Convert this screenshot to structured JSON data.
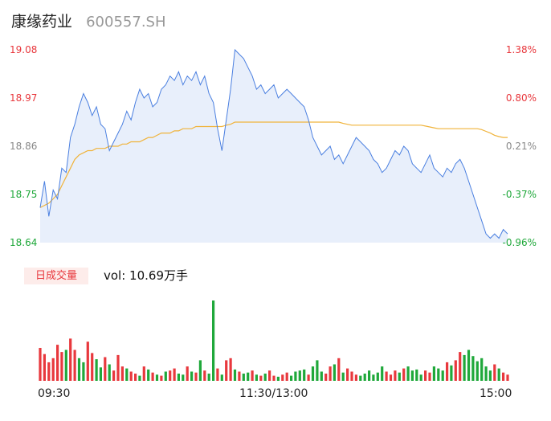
{
  "header": {
    "name": "康缘药业",
    "code": "600557.SH"
  },
  "volume": {
    "tab_label": "日成交量",
    "prefix": "vol: ",
    "value": "10.69万手"
  },
  "colors": {
    "price_line": "#4a7fe0",
    "price_fill": "#e8effb",
    "avg_line": "#f0b33a",
    "up": "#e8383d",
    "down": "#1fa83a",
    "flat": "#888888"
  },
  "chart_data": {
    "type": "line",
    "title": "",
    "price_axis": {
      "min": 18.64,
      "max": 19.08,
      "ticks": [
        {
          "price": "19.08",
          "pct": "1.38%",
          "dir": "up"
        },
        {
          "price": "18.97",
          "pct": "0.80%",
          "dir": "up"
        },
        {
          "price": "18.86",
          "pct": "0.21%",
          "dir": "flat"
        },
        {
          "price": "18.75",
          "pct": "-0.37%",
          "dir": "down"
        },
        {
          "price": "18.64",
          "pct": "-0.96%",
          "dir": "down"
        }
      ]
    },
    "time_labels": [
      "09:30",
      "11:30/13:00",
      "15:00"
    ],
    "series": [
      {
        "kind": "price",
        "values": [
          18.72,
          18.78,
          18.7,
          18.76,
          18.74,
          18.81,
          18.8,
          18.88,
          18.91,
          18.95,
          18.98,
          18.96,
          18.93,
          18.95,
          18.91,
          18.9,
          18.85,
          18.87,
          18.89,
          18.91,
          18.94,
          18.92,
          18.96,
          18.99,
          18.97,
          18.98,
          18.95,
          18.96,
          18.99,
          19.0,
          19.02,
          19.01,
          19.03,
          19.0,
          19.02,
          19.01,
          19.03,
          19.0,
          19.02,
          18.98,
          18.96,
          18.9,
          18.85,
          18.92,
          18.99,
          19.08,
          19.07,
          19.06,
          19.04,
          19.02,
          18.99,
          19.0,
          18.98,
          18.99,
          19.0,
          18.97,
          18.98,
          18.99,
          18.98,
          18.97,
          18.96,
          18.95,
          18.92,
          18.88,
          18.86,
          18.84,
          18.85,
          18.86,
          18.83,
          18.84,
          18.82,
          18.84,
          18.86,
          18.88,
          18.87,
          18.86,
          18.85,
          18.83,
          18.82,
          18.8,
          18.81,
          18.83,
          18.85,
          18.84,
          18.86,
          18.85,
          18.82,
          18.81,
          18.8,
          18.82,
          18.84,
          18.81,
          18.8,
          18.79,
          18.81,
          18.8,
          18.82,
          18.83,
          18.81,
          18.78,
          18.75,
          18.72,
          18.69,
          18.66,
          18.65,
          18.66,
          18.65,
          18.67,
          18.66
        ],
        "volume": [
          32,
          26,
          18,
          22,
          35,
          28,
          30,
          41,
          30,
          22,
          18,
          38,
          27,
          21,
          13,
          23,
          16,
          10,
          25,
          14,
          12,
          9,
          7,
          5,
          14,
          11,
          8,
          6,
          5,
          9,
          10,
          12,
          7,
          6,
          14,
          9,
          8,
          20,
          10,
          7,
          78,
          12,
          6,
          20,
          22,
          11,
          9,
          7,
          8,
          10,
          6,
          5,
          7,
          10,
          5,
          4,
          6,
          8,
          5,
          9,
          10,
          11,
          6,
          14,
          20,
          9,
          7,
          14,
          16,
          22,
          8,
          12,
          9,
          6,
          5,
          7,
          10,
          6,
          8,
          14,
          9,
          6,
          10,
          8,
          12,
          14,
          10,
          11,
          6,
          10,
          8,
          14,
          12,
          10,
          18,
          15,
          20,
          28,
          25,
          30,
          24,
          19,
          22,
          14,
          10,
          16,
          12,
          8,
          6
        ],
        "volume_dir": [
          "up",
          "up",
          "up",
          "up",
          "up",
          "up",
          "down",
          "up",
          "up",
          "down",
          "down",
          "up",
          "up",
          "down",
          "down",
          "up",
          "down",
          "up",
          "up",
          "up",
          "down",
          "up",
          "up",
          "down",
          "up",
          "down",
          "up",
          "down",
          "up",
          "down",
          "up",
          "up",
          "down",
          "down",
          "up",
          "down",
          "up",
          "down",
          "up",
          "down",
          "down",
          "up",
          "down",
          "up",
          "up",
          "down",
          "up",
          "down",
          "down",
          "up",
          "down",
          "up",
          "down",
          "up",
          "up",
          "down",
          "up",
          "up",
          "down",
          "down",
          "down",
          "down",
          "up",
          "down",
          "down",
          "down",
          "up",
          "up",
          "down",
          "up",
          "down",
          "up",
          "up",
          "up",
          "down",
          "down",
          "down",
          "down",
          "down",
          "down",
          "up",
          "up",
          "up",
          "down",
          "up",
          "down",
          "down",
          "down",
          "down",
          "up",
          "up",
          "down",
          "down",
          "down",
          "up",
          "down",
          "up",
          "up",
          "down",
          "down",
          "down",
          "down",
          "down",
          "down",
          "down",
          "up",
          "down",
          "up",
          "up"
        ]
      },
      {
        "kind": "average",
        "values": [
          18.72,
          18.725,
          18.73,
          18.74,
          18.75,
          18.77,
          18.79,
          18.81,
          18.83,
          18.84,
          18.845,
          18.85,
          18.85,
          18.855,
          18.855,
          18.855,
          18.86,
          18.86,
          18.86,
          18.865,
          18.865,
          18.87,
          18.87,
          18.87,
          18.875,
          18.88,
          18.88,
          18.885,
          18.89,
          18.89,
          18.89,
          18.895,
          18.895,
          18.9,
          18.9,
          18.9,
          18.905,
          18.905,
          18.905,
          18.905,
          18.905,
          18.905,
          18.905,
          18.908,
          18.91,
          18.915,
          18.915,
          18.915,
          18.915,
          18.915,
          18.915,
          18.915,
          18.915,
          18.915,
          18.915,
          18.915,
          18.915,
          18.915,
          18.915,
          18.915,
          18.915,
          18.915,
          18.915,
          18.915,
          18.915,
          18.915,
          18.915,
          18.915,
          18.915,
          18.915,
          18.912,
          18.91,
          18.908,
          18.908,
          18.908,
          18.908,
          18.908,
          18.908,
          18.908,
          18.908,
          18.908,
          18.908,
          18.908,
          18.908,
          18.908,
          18.908,
          18.908,
          18.908,
          18.908,
          18.906,
          18.904,
          18.902,
          18.9,
          18.9,
          18.9,
          18.9,
          18.9,
          18.9,
          18.9,
          18.9,
          18.9,
          18.9,
          18.898,
          18.894,
          18.89,
          18.885,
          18.882,
          18.88,
          18.88
        ]
      }
    ]
  }
}
